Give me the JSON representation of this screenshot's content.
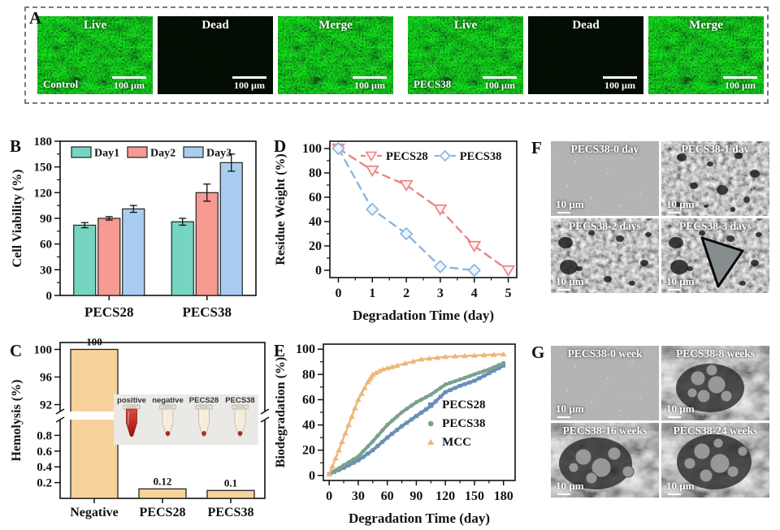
{
  "panels": {
    "a": "A",
    "b": "B",
    "c": "C",
    "d": "D",
    "e": "E",
    "f": "F",
    "g": "G"
  },
  "panelA": {
    "tiles": [
      {
        "texture": "fluor",
        "top_label": "Live",
        "corner_label": "Control",
        "scale_label": "100 µm"
      },
      {
        "texture": "dark",
        "top_label": "Dead",
        "corner_label": "",
        "scale_label": "100 µm"
      },
      {
        "texture": "fluor",
        "top_label": "Merge",
        "corner_label": "",
        "scale_label": "100 µm"
      },
      {
        "texture": "fluor",
        "top_label": "Live",
        "corner_label": "PECS38",
        "scale_label": "100 µm"
      },
      {
        "texture": "dark",
        "top_label": "Dead",
        "corner_label": "",
        "scale_label": "100 µm"
      },
      {
        "texture": "fluor",
        "top_label": "Merge",
        "corner_label": "",
        "scale_label": "100 µm"
      }
    ]
  },
  "chart_data": [
    {
      "id": "B",
      "type": "bar",
      "ylabel": "Cell Viability (%)",
      "categories": [
        "PECS28",
        "PECS38"
      ],
      "series": [
        {
          "name": "Day1",
          "color": "#76d5c0",
          "values": [
            82,
            86
          ],
          "errors": [
            3,
            4
          ]
        },
        {
          "name": "Day2",
          "color": "#f69a92",
          "values": [
            90,
            120
          ],
          "errors": [
            2,
            10
          ]
        },
        {
          "name": "Day3",
          "color": "#a9cdf0",
          "values": [
            101,
            155
          ],
          "errors": [
            4,
            10
          ]
        }
      ],
      "ylim": [
        0,
        180
      ],
      "yticks": [
        0,
        30,
        60,
        90,
        120,
        150,
        180
      ],
      "legend_position": "top-inside",
      "grid": false
    },
    {
      "id": "C",
      "type": "bar-broken",
      "ylabel": "Hemolysis (%)",
      "categories": [
        "Negative",
        "PECS28",
        "PECS38"
      ],
      "values": [
        100,
        0.12,
        0.1
      ],
      "value_labels": [
        "100",
        "0.12",
        "0.1"
      ],
      "bar_color": "#f8d29b",
      "lower_axis": {
        "range": [
          0,
          1.0
        ],
        "ticks": [
          0.2,
          0.4,
          0.6,
          0.8
        ]
      },
      "upper_axis": {
        "range": [
          91,
          101
        ],
        "ticks": [
          92,
          96,
          100
        ]
      },
      "inset_labels": [
        "positive",
        "negative",
        "PECS28",
        "PECS38"
      ],
      "inset_tube_contents": [
        "red",
        "cream-pellet",
        "cream-pellet",
        "cream-pellet"
      ],
      "grid": false
    },
    {
      "id": "D",
      "type": "line",
      "xlabel": "Degradation Time (day)",
      "ylabel": "Residue Weight (%)",
      "xlim": [
        -0.25,
        5.25
      ],
      "ylim": [
        -6,
        106
      ],
      "xticks": [
        0,
        1,
        2,
        3,
        4,
        5
      ],
      "yticks": [
        0,
        20,
        40,
        60,
        80,
        100
      ],
      "series": [
        {
          "name": "PECS28",
          "color": "#ec8383",
          "marker": "triangle-down",
          "dashed": true,
          "x": [
            0,
            1,
            2,
            3,
            4,
            5
          ],
          "y": [
            100,
            82,
            70,
            50,
            20,
            0
          ]
        },
        {
          "name": "PECS38",
          "color": "#8ab5e1",
          "marker": "diamond",
          "dashed": true,
          "x": [
            0,
            1,
            2,
            3,
            4
          ],
          "y": [
            100,
            50,
            30,
            3,
            0
          ]
        }
      ],
      "legend_position": "top-inside",
      "grid": false
    },
    {
      "id": "E",
      "type": "line",
      "xlabel": "Degradation Time (day)",
      "ylabel": "Biodegradation (%)",
      "xlim": [
        -6,
        192
      ],
      "ylim": [
        -4,
        104
      ],
      "xticks": [
        0,
        30,
        60,
        90,
        120,
        150,
        180
      ],
      "yticks": [
        0,
        20,
        40,
        60,
        80,
        100
      ],
      "series": [
        {
          "name": "PECS28",
          "color": "#6a8fb7",
          "marker": "square",
          "thick": true,
          "x": [
            0,
            15,
            30,
            45,
            60,
            75,
            90,
            105,
            120,
            135,
            150,
            165,
            180
          ],
          "y": [
            1,
            6,
            12,
            20,
            30,
            39,
            47,
            55,
            66,
            71,
            75,
            81,
            87
          ]
        },
        {
          "name": "PECS38",
          "color": "#7aa28c",
          "marker": "circle",
          "thick": true,
          "x": [
            0,
            15,
            30,
            45,
            60,
            75,
            90,
            105,
            120,
            135,
            150,
            165,
            180
          ],
          "y": [
            1,
            8,
            15,
            27,
            40,
            50,
            58,
            64,
            72,
            76,
            80,
            84,
            89
          ]
        },
        {
          "name": "MCC",
          "color": "#edb678",
          "marker": "triangle",
          "thick": false,
          "x": [
            0,
            10,
            20,
            30,
            40,
            45,
            55,
            70,
            95,
            120,
            150,
            180
          ],
          "y": [
            1,
            20,
            40,
            60,
            74,
            80,
            84,
            87,
            92,
            94,
            95,
            96
          ]
        }
      ],
      "legend_position": "right-inside",
      "grid": false
    }
  ],
  "panelF": {
    "tiles": [
      {
        "label": "PECS38-0 day",
        "texture": "smooth",
        "scale_label": "10 µm"
      },
      {
        "label": "PECS38-1 day",
        "texture": "porous",
        "scale_label": "10 µm"
      },
      {
        "label": "PECS38-2 days",
        "texture": "porous2",
        "scale_label": "10 µm"
      },
      {
        "label": "PECS38-3 days",
        "texture": "porousHole",
        "scale_label": "10 µm"
      }
    ]
  },
  "panelG": {
    "tiles": [
      {
        "label": "PECS38-0 week",
        "texture": "smooth",
        "scale_label": "10 µm"
      },
      {
        "label": "PECS38-8 weeks",
        "texture": "crater",
        "scale_label": "10 µm"
      },
      {
        "label": "PECS38-16 weeks",
        "texture": "crater2",
        "scale_label": "10 µm"
      },
      {
        "label": "PECS38-24 weeks",
        "texture": "crater3",
        "scale_label": "10 µm"
      }
    ]
  }
}
